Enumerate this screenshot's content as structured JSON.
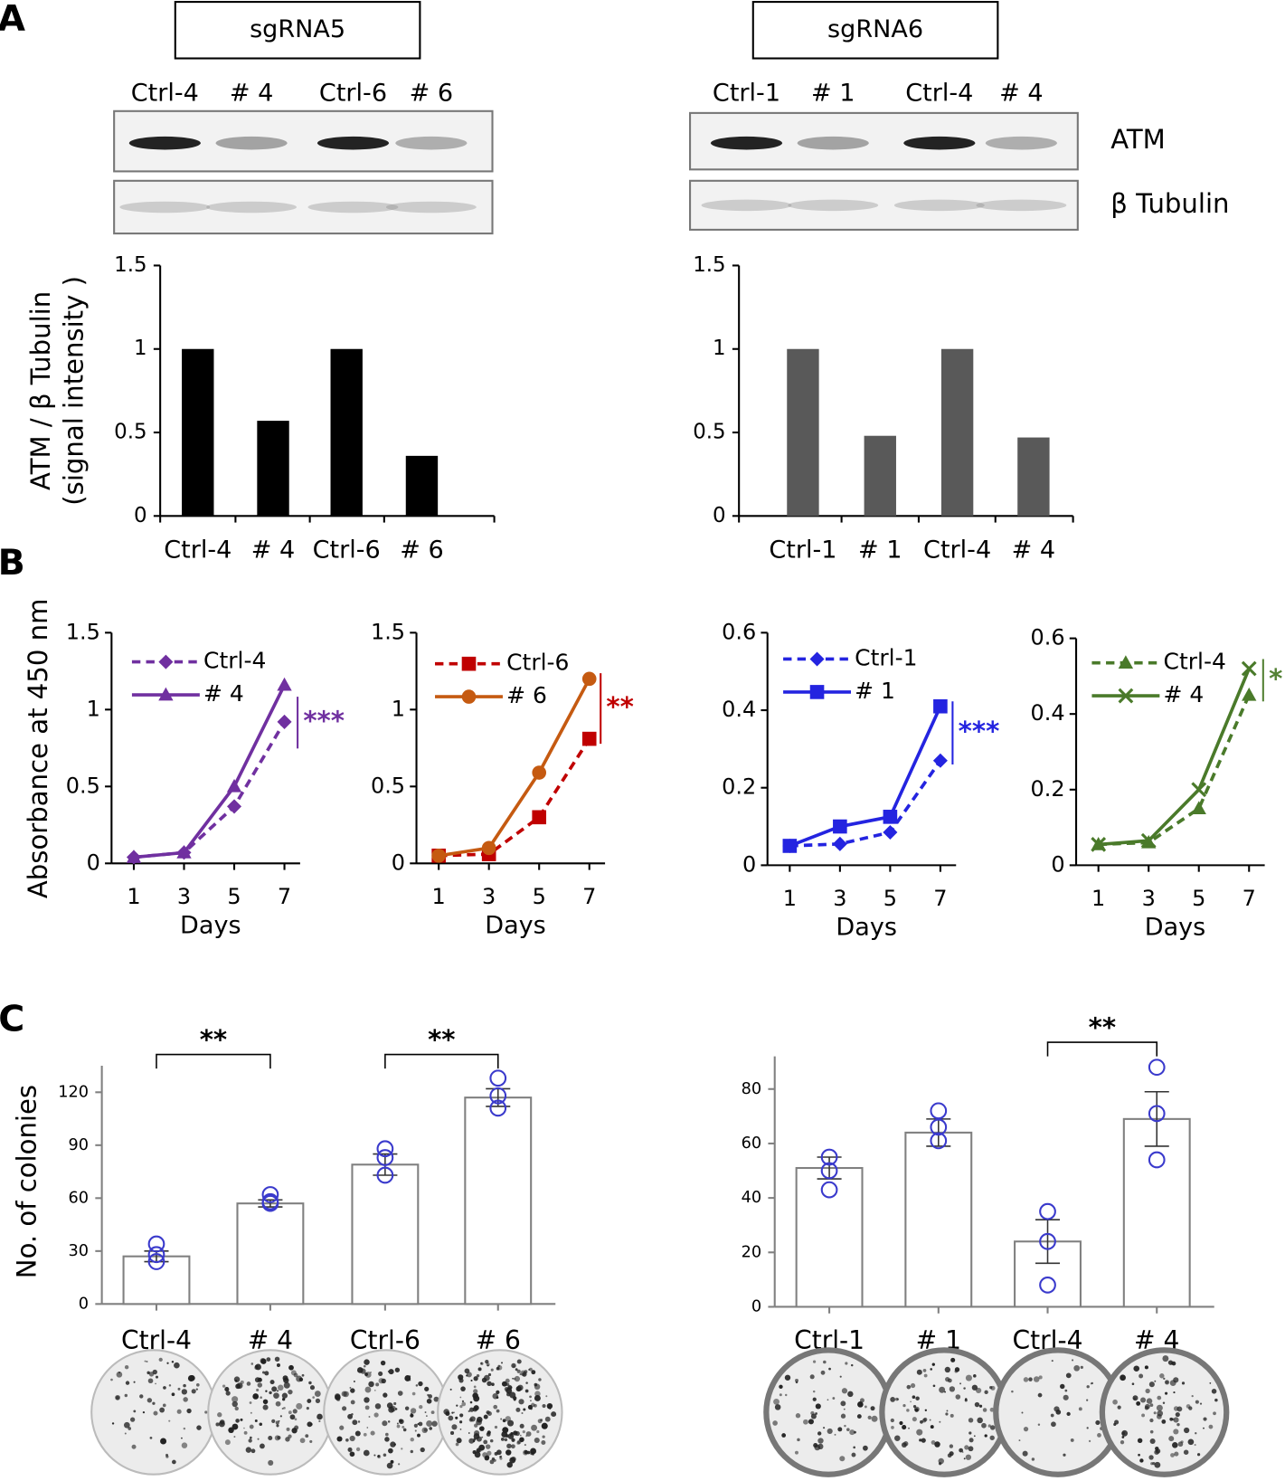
{
  "panel_labels": [
    "A",
    "B",
    "C"
  ],
  "blots": [
    {
      "title": "sgRNA5",
      "lanes": [
        "Ctrl-4",
        "# 4",
        "Ctrl-6",
        "# 6"
      ]
    },
    {
      "title": "sgRNA6",
      "lanes": [
        "Ctrl-1",
        "# 1",
        "Ctrl-4",
        "# 4"
      ]
    }
  ],
  "blot_rows": [
    "ATM",
    "β Tubulin"
  ],
  "chart_data": [
    {
      "type": "bar",
      "categories": [
        "Ctrl-4",
        "# 4",
        "Ctrl-6",
        "# 6"
      ],
      "values": [
        1,
        0.57,
        1,
        0.36
      ],
      "color": "#000000",
      "ylim": [
        0,
        1.5
      ],
      "yticks": [
        0,
        0.5,
        1,
        1.5
      ],
      "ylabel": [
        "ATM / β Tubulin",
        "(signal intensity )"
      ]
    },
    {
      "type": "bar",
      "categories": [
        "Ctrl-1",
        "# 1",
        "Ctrl-4",
        "# 4"
      ],
      "values": [
        1,
        0.48,
        1,
        0.47
      ],
      "color": "#595959",
      "ylim": [
        0,
        1.5
      ],
      "yticks": [
        0,
        0.5,
        1,
        1.5
      ]
    },
    {
      "type": "line",
      "x": [
        1,
        3,
        5,
        7
      ],
      "xlim": [
        0,
        8
      ],
      "xticks": [
        1,
        3,
        5,
        7
      ],
      "ylim": [
        0,
        1.5
      ],
      "yticks": [
        0,
        0.5,
        1,
        1.5
      ],
      "ylabel": "Absorbance at 450 nm",
      "xlabel": "Days",
      "annotation": "***",
      "annotation_color": "#7030a0",
      "series": [
        {
          "name": "Ctrl-4",
          "color": "#7030a0",
          "dashed": true,
          "marker": "diamond",
          "values": [
            0.04,
            0.07,
            0.37,
            0.92
          ]
        },
        {
          "name": "# 4",
          "color": "#7030a0",
          "dashed": false,
          "marker": "triangle",
          "values": [
            0.04,
            0.07,
            0.5,
            1.16
          ]
        }
      ]
    },
    {
      "type": "line",
      "x": [
        1,
        3,
        5,
        7
      ],
      "xlim": [
        0,
        8
      ],
      "xticks": [
        1,
        3,
        5,
        7
      ],
      "ylim": [
        0,
        1.5
      ],
      "yticks": [
        0,
        0.5,
        1,
        1.5
      ],
      "xlabel": "Days",
      "annotation": "**",
      "annotation_color": "#c00000",
      "series": [
        {
          "name": "Ctrl-6",
          "color": "#c00000",
          "dashed": true,
          "marker": "square",
          "values": [
            0.05,
            0.06,
            0.3,
            0.81
          ]
        },
        {
          "name": "# 6",
          "color": "#c55a11",
          "dashed": false,
          "marker": "circle",
          "values": [
            0.05,
            0.1,
            0.59,
            1.2
          ]
        }
      ]
    },
    {
      "type": "line",
      "x": [
        1,
        3,
        5,
        7
      ],
      "xlim": [
        0,
        8
      ],
      "xticks": [
        1,
        3,
        5,
        7
      ],
      "ylim": [
        0,
        0.6
      ],
      "yticks": [
        0,
        0.2,
        0.4,
        0.6
      ],
      "xlabel": "Days",
      "annotation": "***",
      "annotation_color": "#2424e0",
      "series": [
        {
          "name": "Ctrl-1",
          "color": "#2424e0",
          "dashed": true,
          "marker": "diamond",
          "values": [
            0.05,
            0.055,
            0.085,
            0.27
          ]
        },
        {
          "name": "# 1",
          "color": "#2424e0",
          "dashed": false,
          "marker": "square",
          "values": [
            0.05,
            0.1,
            0.125,
            0.41
          ]
        }
      ]
    },
    {
      "type": "line",
      "x": [
        1,
        3,
        5,
        7
      ],
      "xlim": [
        0,
        8
      ],
      "xticks": [
        1,
        3,
        5,
        7
      ],
      "ylim": [
        0,
        0.6
      ],
      "yticks": [
        0,
        0.2,
        0.4,
        0.6
      ],
      "xlabel": "Days",
      "annotation": "*",
      "annotation_color": "#548235",
      "series": [
        {
          "name": "Ctrl-4",
          "color": "#4a7a2a",
          "dashed": true,
          "marker": "triangle",
          "values": [
            0.055,
            0.06,
            0.15,
            0.45
          ]
        },
        {
          "name": "# 4",
          "color": "#4a7a2a",
          "dashed": false,
          "marker": "x",
          "values": [
            0.055,
            0.065,
            0.2,
            0.52
          ]
        }
      ]
    },
    {
      "type": "bar",
      "categories": [
        "Ctrl-4",
        "# 4",
        "Ctrl-6",
        "# 6"
      ],
      "values": [
        27,
        57,
        79,
        117
      ],
      "errors": [
        3,
        2,
        6,
        5
      ],
      "points": [
        [
          34,
          28,
          24
        ],
        [
          62,
          58,
          57
        ],
        [
          88,
          83,
          73
        ],
        [
          128,
          118,
          111
        ]
      ],
      "color": "#ffffff",
      "edgecolor": "#808080",
      "point_color": "#3a3acc",
      "ylim": [
        0,
        135
      ],
      "yticks": [
        0,
        30,
        60,
        90,
        120
      ],
      "ylabel": "No. of colonies",
      "brackets": [
        {
          "categories": [
            0,
            1
          ],
          "label": "**"
        },
        {
          "categories": [
            2,
            3
          ],
          "label": "**"
        }
      ]
    },
    {
      "type": "bar",
      "categories": [
        "Ctrl-1",
        "# 1",
        "Ctrl-4",
        "# 4"
      ],
      "values": [
        51,
        64,
        24,
        69
      ],
      "errors": [
        4,
        5,
        8,
        10
      ],
      "points": [
        [
          55,
          50,
          43
        ],
        [
          72,
          66,
          61
        ],
        [
          35,
          24,
          8
        ],
        [
          88,
          71,
          54
        ]
      ],
      "color": "#ffffff",
      "edgecolor": "#808080",
      "point_color": "#3a3acc",
      "ylim": [
        0,
        92
      ],
      "yticks": [
        0,
        20,
        40,
        60,
        80
      ],
      "brackets": [
        {
          "categories": [
            2,
            3
          ],
          "label": "**"
        }
      ]
    }
  ]
}
